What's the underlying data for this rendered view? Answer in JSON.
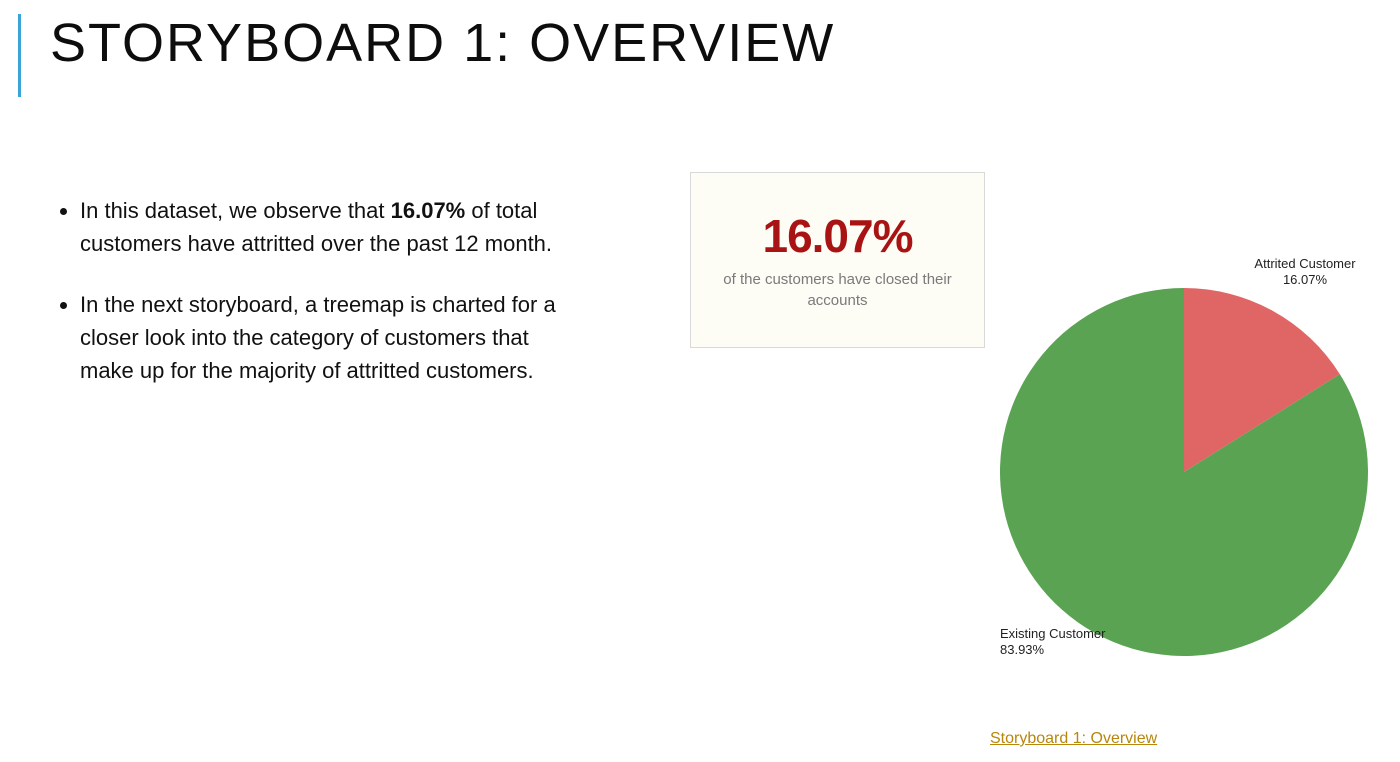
{
  "title": "STORYBOARD 1: OVERVIEW",
  "bullets": [
    {
      "pre": "In this dataset, we observe that ",
      "bold": "16.07%",
      "post": " of total customers have attritted over the past 12 month."
    },
    {
      "pre": "In the next storyboard, a treemap is charted for a closer look into the category of customers that make up for the majority of attritted customers.",
      "bold": "",
      "post": ""
    }
  ],
  "metric": {
    "value": "16.07%",
    "caption": "of the customers have closed their accounts",
    "value_color": "#a81414",
    "value_fontsize": 46,
    "caption_color": "#7a7a7a",
    "caption_fontsize": 15,
    "card_bg": "#fdfdf5",
    "card_border": "#d9d9d9"
  },
  "pie": {
    "type": "pie",
    "slices": [
      {
        "label": "Attrited Customer",
        "percent": 16.07,
        "color": "#e06666"
      },
      {
        "label": "Existing Customer",
        "percent": 83.93,
        "color": "#5aa353"
      }
    ],
    "radius": 184,
    "start_angle_deg": -90,
    "label_fontsize": 13,
    "label_color": "#222222",
    "background_color": "#ffffff"
  },
  "chart_labels": {
    "attrited_label": "Attrited Customer",
    "attrited_pct": "16.07%",
    "existing_label": "Existing Customer",
    "existing_pct": "83.93%"
  },
  "bottom_link": "Storyboard 1: Overview",
  "bottom_link_color": "#b8860b",
  "accent_bar_color": "#3ba4d8",
  "title_fontsize": 54,
  "body_fontsize": 22
}
